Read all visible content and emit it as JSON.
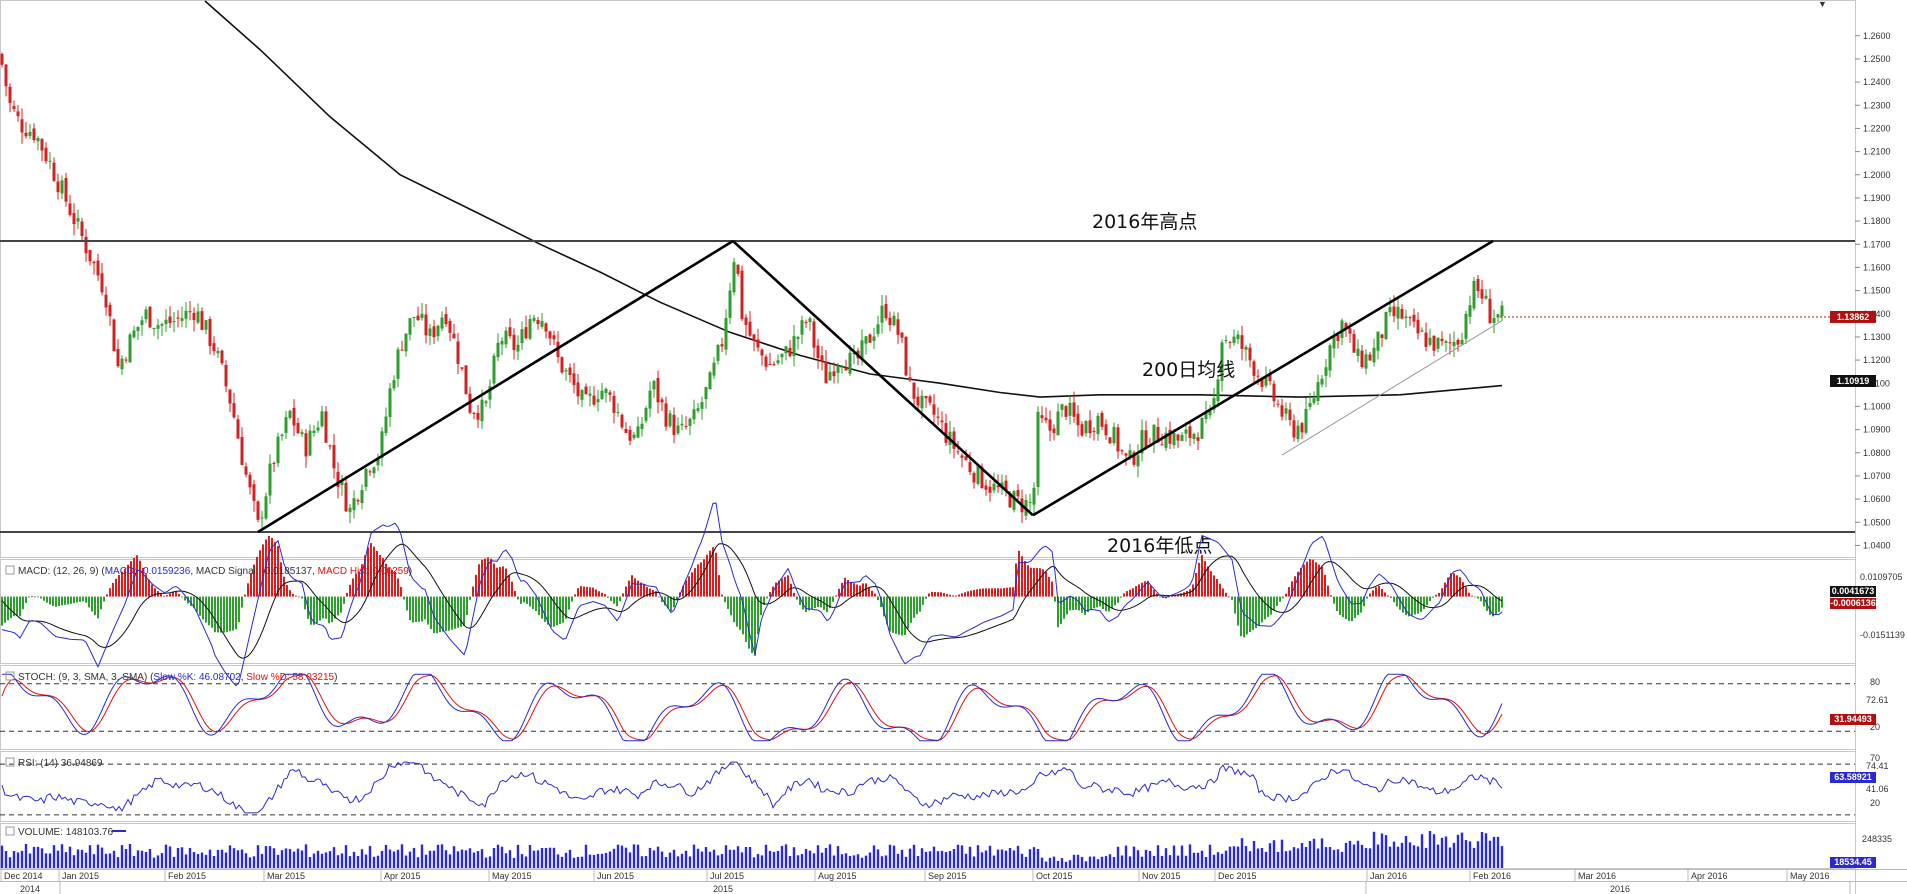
{
  "colors": {
    "up": "#2e9e2e",
    "down": "#d42020",
    "macd_line": "#2a2ad0",
    "signal_line": "#111111",
    "stoch_k": "#2a2ad0",
    "stoch_d": "#dd1111",
    "rsi": "#2a2ad0",
    "volume": "#2a2ad0",
    "price_tag": "#b01010",
    "ma_tag": "#111111",
    "volume_tag": "#2a2ad0"
  },
  "chart_data": {
    "type": "candlestick",
    "price_axis": {
      "range": [
        1.035,
        1.275
      ],
      "ticks": [
        "1.2600",
        "1.2500",
        "1.2400",
        "1.2300",
        "1.2200",
        "1.2100",
        "1.2000",
        "1.1900",
        "1.1800",
        "1.1700",
        "1.1600",
        "1.1500",
        "1.1400",
        "1.1300",
        "1.1200",
        "1.1100",
        "1.1000",
        "1.0900",
        "1.0800",
        "1.0700",
        "1.0600",
        "1.0500",
        "1.0400"
      ]
    },
    "time_axis": {
      "months": [
        "Dec 2014",
        "Jan 2015",
        "Feb 2015",
        "Mar 2015",
        "Apr 2015",
        "May 2015",
        "Jun 2015",
        "Jul 2015",
        "Aug 2015",
        "Sep 2015",
        "Oct 2015",
        "Nov 2015",
        "Dec 2015",
        "Jan 2016",
        "Feb 2016",
        "Mar 2016",
        "Apr 2016",
        "May 2016"
      ],
      "years": [
        "2014",
        "2015",
        "2016"
      ]
    },
    "price_path": [
      [
        0,
        1.252
      ],
      [
        10,
        1.23
      ],
      [
        20,
        1.222
      ],
      [
        35,
        1.218
      ],
      [
        50,
        1.205
      ],
      [
        70,
        1.185
      ],
      [
        90,
        1.165
      ],
      [
        105,
        1.15
      ],
      [
        118,
        1.117
      ],
      [
        132,
        1.13
      ],
      [
        145,
        1.14
      ],
      [
        160,
        1.135
      ],
      [
        175,
        1.137
      ],
      [
        195,
        1.142
      ],
      [
        215,
        1.125
      ],
      [
        232,
        1.1
      ],
      [
        245,
        1.072
      ],
      [
        258,
        1.048
      ],
      [
        272,
        1.075
      ],
      [
        290,
        1.097
      ],
      [
        305,
        1.082
      ],
      [
        322,
        1.097
      ],
      [
        335,
        1.072
      ],
      [
        350,
        1.055
      ],
      [
        368,
        1.075
      ],
      [
        380,
        1.08
      ],
      [
        392,
        1.112
      ],
      [
        403,
        1.13
      ],
      [
        415,
        1.14
      ],
      [
        430,
        1.13
      ],
      [
        445,
        1.142
      ],
      [
        458,
        1.122
      ],
      [
        470,
        1.1
      ],
      [
        485,
        1.098
      ],
      [
        500,
        1.13
      ],
      [
        517,
        1.125
      ],
      [
        532,
        1.14
      ],
      [
        545,
        1.138
      ],
      [
        558,
        1.12
      ],
      [
        572,
        1.11
      ],
      [
        585,
        1.1
      ],
      [
        600,
        1.108
      ],
      [
        613,
        1.102
      ],
      [
        625,
        1.09
      ],
      [
        637,
        1.085
      ],
      [
        652,
        1.11
      ],
      [
        667,
        1.095
      ],
      [
        680,
        1.088
      ],
      [
        695,
        1.095
      ],
      [
        710,
        1.11
      ],
      [
        722,
        1.128
      ],
      [
        735,
        1.168
      ],
      [
        742,
        1.14
      ],
      [
        755,
        1.125
      ],
      [
        770,
        1.118
      ],
      [
        785,
        1.122
      ],
      [
        800,
        1.132
      ],
      [
        808,
        1.138
      ],
      [
        815,
        1.125
      ],
      [
        825,
        1.112
      ],
      [
        840,
        1.122
      ],
      [
        855,
        1.118
      ],
      [
        870,
        1.13
      ],
      [
        885,
        1.143
      ],
      [
        900,
        1.13
      ],
      [
        910,
        1.108
      ],
      [
        922,
        1.1
      ],
      [
        935,
        1.096
      ],
      [
        950,
        1.085
      ],
      [
        962,
        1.078
      ],
      [
        978,
        1.07
      ],
      [
        992,
        1.065
      ],
      [
        1005,
        1.062
      ],
      [
        1020,
        1.058
      ],
      [
        1033,
        1.058
      ],
      [
        1038,
        1.093
      ],
      [
        1050,
        1.09
      ],
      [
        1065,
        1.1
      ],
      [
        1080,
        1.09
      ],
      [
        1098,
        1.095
      ],
      [
        1112,
        1.088
      ],
      [
        1128,
        1.075
      ],
      [
        1145,
        1.087
      ],
      [
        1165,
        1.088
      ],
      [
        1180,
        1.085
      ],
      [
        1198,
        1.09
      ],
      [
        1212,
        1.095
      ],
      [
        1222,
        1.13
      ],
      [
        1238,
        1.128
      ],
      [
        1250,
        1.12
      ],
      [
        1265,
        1.11
      ],
      [
        1278,
        1.1
      ],
      [
        1292,
        1.09
      ],
      [
        1305,
        1.093
      ],
      [
        1318,
        1.11
      ],
      [
        1330,
        1.126
      ],
      [
        1342,
        1.136
      ],
      [
        1358,
        1.12
      ],
      [
        1372,
        1.122
      ],
      [
        1388,
        1.138
      ],
      [
        1400,
        1.14
      ],
      [
        1415,
        1.132
      ],
      [
        1430,
        1.128
      ],
      [
        1445,
        1.125
      ],
      [
        1460,
        1.13
      ],
      [
        1472,
        1.15
      ],
      [
        1480,
        1.15
      ],
      [
        1490,
        1.14
      ],
      [
        1502,
        1.1386
      ]
    ],
    "ma200_path": [
      [
        205,
        1.275
      ],
      [
        260,
        1.254
      ],
      [
        330,
        1.225
      ],
      [
        400,
        1.2
      ],
      [
        480,
        1.183
      ],
      [
        540,
        1.17
      ],
      [
        600,
        1.158
      ],
      [
        660,
        1.145
      ],
      [
        730,
        1.132
      ],
      [
        800,
        1.122
      ],
      [
        870,
        1.114
      ],
      [
        940,
        1.11
      ],
      [
        1000,
        1.106
      ],
      [
        1040,
        1.104
      ],
      [
        1100,
        1.105
      ],
      [
        1200,
        1.105
      ],
      [
        1300,
        1.104
      ],
      [
        1400,
        1.105
      ],
      [
        1502,
        1.109
      ]
    ],
    "horizontal_levels": [
      {
        "label": "2016年高点",
        "value": 1.1714
      },
      {
        "label": "2016年低点",
        "value": 1.0458
      }
    ],
    "pattern_lines": [
      [
        [
          258,
          1.0458
        ],
        [
          733,
          1.1714
        ]
      ],
      [
        [
          733,
          1.1714
        ],
        [
          1033,
          1.053
        ]
      ],
      [
        [
          1033,
          1.053
        ],
        [
          1493,
          1.1714
        ]
      ]
    ],
    "support_line": [
      [
        1282,
        1.079
      ],
      [
        1502,
        1.137
      ]
    ],
    "labels": {
      "high": "2016年高点",
      "low": "2016年低点",
      "ma": "200日均线"
    },
    "current_price": "1.13862",
    "ma200_value": "1.10919",
    "macd": {
      "legend_prefix": "MACD: (12, 26, 9) (",
      "legend_macd": "MACD: -0.0159236",
      "legend_signal": ", MACD Signal: -0.0185137, ",
      "legend_hist": "MACD Hist: 0.00259",
      "legend_suffix": ")",
      "ticks": [
        "0.0109705",
        "-0.0151139"
      ],
      "tag_macd": "0.0041673",
      "tag_hist": "-0.0006136",
      "range": [
        -0.022,
        0.012
      ]
    },
    "stoch": {
      "legend_prefix": "STOCH: (9, 3, SMA, 3, SMA) (",
      "legend_k": "Slow %K: 46.08702",
      "legend_sep": ", ",
      "legend_d": "Slow %D: 58.03215",
      "legend_suffix": ")",
      "levels": [
        80,
        20
      ],
      "ticks": [
        "80",
        "72.61",
        "20"
      ],
      "tag_value": "31.94493",
      "range": [
        0,
        100
      ]
    },
    "rsi": {
      "legend": "RSI: (14) 36.94869",
      "levels": [
        70,
        20
      ],
      "ticks": [
        "70",
        "74.41",
        "41.06",
        "20"
      ],
      "tag_value": "63.58921",
      "range": [
        15,
        80
      ]
    },
    "volume": {
      "legend": "VOLUME: 148103.76",
      "ticks": [
        "248335"
      ],
      "tag_value": "18534.45"
    }
  }
}
